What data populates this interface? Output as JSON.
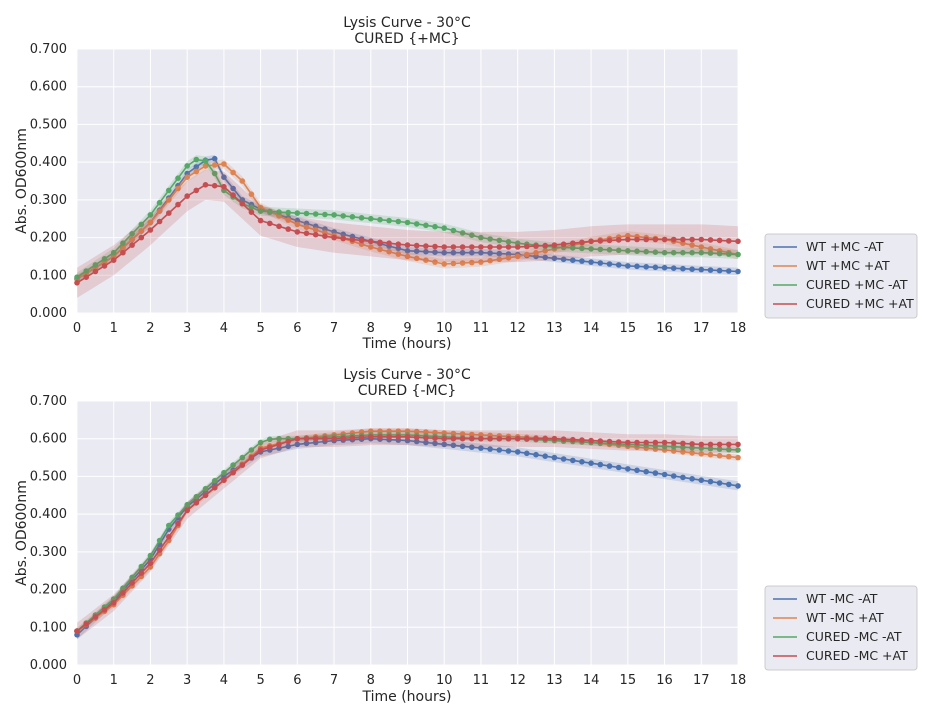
{
  "chart_data": [
    {
      "type": "line",
      "title": "Lysis Curve - 30°C",
      "subtitle": "CURED {+MC}",
      "xlabel": "Time (hours)",
      "ylabel": "Abs. OD600nm",
      "xlim": [
        0,
        18
      ],
      "ylim": [
        0,
        0.7
      ],
      "xticks": [
        "0",
        "1",
        "2",
        "3",
        "4",
        "5",
        "6",
        "7",
        "8",
        "9",
        "10",
        "11",
        "12",
        "13",
        "14",
        "15",
        "16",
        "17",
        "18"
      ],
      "yticks": [
        "0.000",
        "0.100",
        "0.200",
        "0.300",
        "0.400",
        "0.500",
        "0.600",
        "0.700"
      ],
      "grid": true,
      "legend_position": "right",
      "background": "#eaeaf2",
      "series": [
        {
          "name": "WT +MC -AT",
          "color": "#4c72b0",
          "x": [
            0,
            1,
            2,
            3,
            3.5,
            3.8,
            4,
            4.5,
            5,
            6,
            7,
            8,
            9,
            10,
            11,
            12,
            13,
            14,
            15,
            16,
            17,
            18
          ],
          "y": [
            0.09,
            0.15,
            0.24,
            0.37,
            0.405,
            0.41,
            0.36,
            0.3,
            0.275,
            0.245,
            0.215,
            0.19,
            0.165,
            0.16,
            0.16,
            0.155,
            0.145,
            0.135,
            0.125,
            0.12,
            0.115,
            0.11
          ],
          "band": 0.01
        },
        {
          "name": "WT +MC +AT",
          "color": "#dd8452",
          "x": [
            0,
            1,
            2,
            3,
            3.5,
            4,
            4.5,
            5,
            6,
            7,
            8,
            9,
            10,
            11,
            12,
            13,
            14,
            15,
            16,
            17,
            18
          ],
          "y": [
            0.09,
            0.15,
            0.24,
            0.36,
            0.39,
            0.395,
            0.35,
            0.28,
            0.235,
            0.205,
            0.175,
            0.15,
            0.13,
            0.135,
            0.15,
            0.17,
            0.19,
            0.205,
            0.195,
            0.175,
            0.155
          ],
          "band": 0.012
        },
        {
          "name": "CURED +MC -AT",
          "color": "#55a868",
          "x": [
            0,
            1,
            2,
            3,
            3.3,
            3.6,
            3.8,
            4,
            4.5,
            5,
            6,
            7,
            8,
            9,
            10,
            11,
            12,
            13,
            14,
            15,
            16,
            17,
            18
          ],
          "y": [
            0.095,
            0.16,
            0.26,
            0.39,
            0.41,
            0.4,
            0.36,
            0.325,
            0.29,
            0.27,
            0.265,
            0.26,
            0.25,
            0.24,
            0.225,
            0.2,
            0.185,
            0.175,
            0.17,
            0.165,
            0.16,
            0.16,
            0.155
          ],
          "band": 0.012
        },
        {
          "name": "CURED +MC +AT",
          "color": "#c44e52",
          "x": [
            0,
            1,
            2,
            3,
            3.5,
            4,
            4.5,
            5,
            6,
            7,
            8,
            9,
            10,
            11,
            12,
            13,
            14,
            15,
            16,
            17,
            18
          ],
          "y": [
            0.08,
            0.14,
            0.22,
            0.31,
            0.34,
            0.335,
            0.29,
            0.245,
            0.215,
            0.2,
            0.19,
            0.18,
            0.175,
            0.175,
            0.175,
            0.18,
            0.19,
            0.195,
            0.195,
            0.195,
            0.19
          ],
          "band": 0.04
        }
      ]
    },
    {
      "type": "line",
      "title": "Lysis Curve - 30°C",
      "subtitle": "CURED {-MC}",
      "xlabel": "Time (hours)",
      "ylabel": "Abs. OD600nm",
      "xlim": [
        0,
        18
      ],
      "ylim": [
        0,
        0.7
      ],
      "xticks": [
        "0",
        "1",
        "2",
        "3",
        "4",
        "5",
        "6",
        "7",
        "8",
        "9",
        "10",
        "11",
        "12",
        "13",
        "14",
        "15",
        "16",
        "17",
        "18"
      ],
      "yticks": [
        "0.000",
        "0.100",
        "0.200",
        "0.300",
        "0.400",
        "0.500",
        "0.600",
        "0.700"
      ],
      "grid": true,
      "legend_position": "right",
      "background": "#eaeaf2",
      "series": [
        {
          "name": "WT -MC -AT",
          "color": "#4c72b0",
          "x": [
            0,
            1,
            2,
            2.5,
            3,
            4,
            5,
            6,
            7,
            8,
            9,
            10,
            11,
            12,
            13,
            14,
            15,
            16,
            17,
            18
          ],
          "y": [
            0.08,
            0.17,
            0.28,
            0.36,
            0.42,
            0.5,
            0.565,
            0.585,
            0.595,
            0.6,
            0.595,
            0.585,
            0.575,
            0.565,
            0.55,
            0.535,
            0.52,
            0.505,
            0.49,
            0.475
          ],
          "band": 0.012
        },
        {
          "name": "WT -MC +AT",
          "color": "#dd8452",
          "x": [
            0,
            1,
            2,
            2.5,
            3,
            4,
            5,
            6,
            7,
            8,
            9,
            10,
            11,
            12,
            13,
            14,
            15,
            16,
            17,
            18
          ],
          "y": [
            0.09,
            0.16,
            0.26,
            0.33,
            0.41,
            0.49,
            0.575,
            0.6,
            0.61,
            0.62,
            0.62,
            0.615,
            0.61,
            0.605,
            0.6,
            0.59,
            0.58,
            0.57,
            0.56,
            0.55
          ],
          "band": 0.008
        },
        {
          "name": "CURED -MC -AT",
          "color": "#55a868",
          "x": [
            0,
            1,
            2,
            2.5,
            3,
            4,
            5,
            5.3,
            6,
            7,
            8,
            9,
            10,
            11,
            12,
            13,
            14,
            15,
            16,
            17,
            18
          ],
          "y": [
            0.09,
            0.175,
            0.29,
            0.37,
            0.425,
            0.51,
            0.59,
            0.6,
            0.6,
            0.605,
            0.61,
            0.61,
            0.605,
            0.6,
            0.6,
            0.595,
            0.59,
            0.585,
            0.58,
            0.575,
            0.57
          ],
          "band": 0.008
        },
        {
          "name": "CURED -MC +AT",
          "color": "#c44e52",
          "x": [
            0,
            1,
            2,
            2.5,
            3,
            4,
            5,
            6,
            7,
            8,
            9,
            10,
            11,
            12,
            13,
            14,
            15,
            16,
            17,
            18
          ],
          "y": [
            0.09,
            0.165,
            0.27,
            0.34,
            0.41,
            0.49,
            0.57,
            0.6,
            0.6,
            0.605,
            0.605,
            0.6,
            0.6,
            0.6,
            0.6,
            0.595,
            0.59,
            0.59,
            0.585,
            0.585
          ],
          "band": 0.022
        }
      ]
    }
  ]
}
